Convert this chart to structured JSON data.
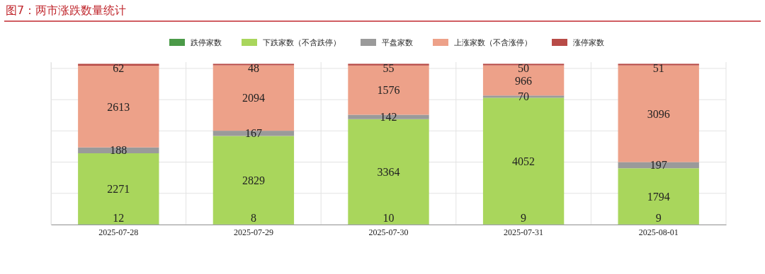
{
  "chart_data": {
    "type": "bar",
    "title": "图7：两市涨跌数量统计",
    "stacked": true,
    "data_labels": true,
    "grid": true,
    "legend": "top",
    "tick_labels": "x",
    "categories": [
      "2025-07-28",
      "2025-07-29",
      "2025-07-30",
      "2025-07-31",
      "2025-08-01"
    ],
    "ylim": [
      0,
      5200
    ],
    "yticks": [
      {
        "value": 0,
        "label": null
      },
      {
        "value": 1000,
        "label": null
      },
      {
        "value": 2000,
        "label": null
      },
      {
        "value": 3000,
        "label": null
      },
      {
        "value": 4000,
        "label": null
      },
      {
        "value": 5000,
        "label": null
      }
    ],
    "series": [
      {
        "name": "跌停家数",
        "color": "#4b9a48",
        "values": [
          12,
          8,
          10,
          9,
          9
        ]
      },
      {
        "name": "下跌家数（不含跌停）",
        "color": "#a9d65c",
        "values": [
          2271,
          2829,
          3364,
          4052,
          1794
        ]
      },
      {
        "name": "平盘家数",
        "color": "#9a9a9a",
        "values": [
          188,
          167,
          142,
          70,
          197
        ]
      },
      {
        "name": "上涨家数（不含涨停）",
        "color": "#eda189",
        "values": [
          2613,
          2094,
          1576,
          966,
          3096
        ]
      },
      {
        "name": "涨停家数",
        "color": "#b84b47",
        "values": [
          62,
          48,
          55,
          50,
          51
        ]
      }
    ]
  }
}
